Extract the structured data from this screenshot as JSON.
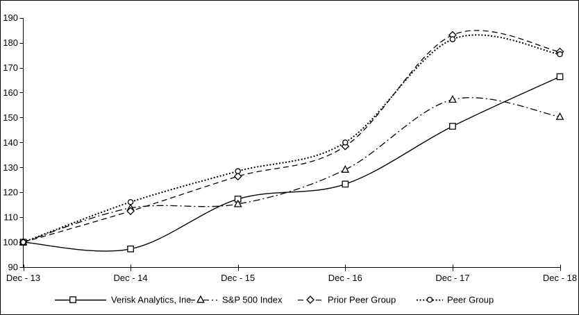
{
  "chart_data": {
    "type": "line",
    "title": "",
    "xlabel": "",
    "ylabel": "",
    "categories": [
      "Dec - 13",
      "Dec - 14",
      "Dec - 15",
      "Dec - 16",
      "Dec - 17",
      "Dec - 18"
    ],
    "ylim": [
      90,
      190
    ],
    "yticks": [
      90,
      100,
      110,
      120,
      130,
      140,
      150,
      160,
      170,
      180,
      190
    ],
    "grid": false,
    "legend_position": "bottom",
    "background_color": "#ffffff",
    "line_color": "#000000",
    "marker_fill": "#ffffff",
    "series": [
      {
        "name": "Verisk Analytics, Inc.",
        "marker": "square",
        "line_style": "solid",
        "smooth": true,
        "values": [
          100,
          97.3,
          117.3,
          123.3,
          146.5,
          166.4
        ]
      },
      {
        "name": "S&P 500 Index",
        "marker": "triangle",
        "line_style": "dash-dot",
        "smooth": true,
        "values": [
          100,
          113.7,
          115.3,
          129.1,
          157.2,
          150.3
        ]
      },
      {
        "name": "Prior Peer Group",
        "marker": "diamond",
        "line_style": "dashed",
        "smooth": true,
        "values": [
          100,
          112.5,
          126.4,
          138.5,
          183.1,
          176.4
        ]
      },
      {
        "name": "Peer Group",
        "marker": "circle",
        "line_style": "dotted",
        "smooth": true,
        "values": [
          100,
          116.1,
          128.5,
          140.0,
          181.4,
          175.4
        ]
      }
    ]
  }
}
